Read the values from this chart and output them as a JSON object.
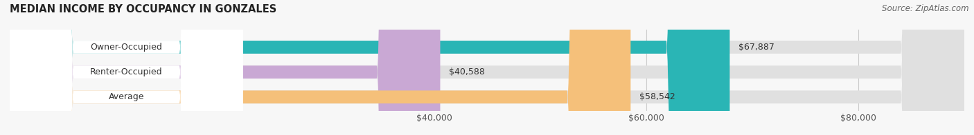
{
  "title": "MEDIAN INCOME BY OCCUPANCY IN GONZALES",
  "source": "Source: ZipAtlas.com",
  "categories": [
    "Owner-Occupied",
    "Renter-Occupied",
    "Average"
  ],
  "values": [
    67887,
    40588,
    58542
  ],
  "labels": [
    "$67,887",
    "$40,588",
    "$58,542"
  ],
  "bar_colors": [
    "#2ab5b5",
    "#c9a8d4",
    "#f5c07a"
  ],
  "bar_bg_color": "#e0e0e0",
  "label_bg_color": "#ffffff",
  "xmin": 0,
  "xmax": 90000,
  "xticks": [
    40000,
    60000,
    80000
  ],
  "xticklabels": [
    "$40,000",
    "$60,000",
    "$80,000"
  ],
  "figsize": [
    14.06,
    1.96
  ],
  "dpi": 100
}
